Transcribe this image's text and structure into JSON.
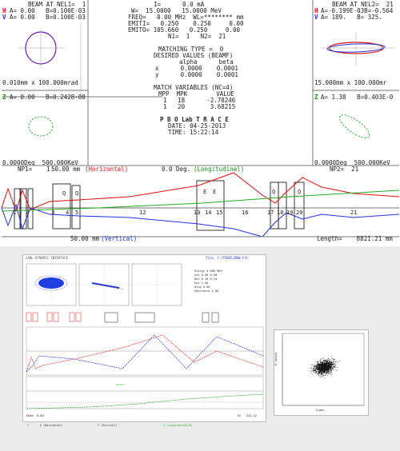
{
  "top_window": {
    "left_beam": {
      "title": "BEAM AT NEL1=  1",
      "h_line": "A= 0.00   B=0.100E-03",
      "v_line": "A= 0.00   B=0.100E-03",
      "scale": "0.010mm x 100.000mrad",
      "long_line": "A= 0.00   B=0.2428-08",
      "long_scale": "0.0000Deg  500.000KeV",
      "h_label": "H",
      "v_label": "V",
      "z_label": "Z"
    },
    "right_beam": {
      "title": "BEAM AT NEL2=  21",
      "h_line": "A=-0.199E-03B=-0.564",
      "v_line": "A= 189.   B= 325.",
      "scale": "15.000mm x 100.000mr",
      "long_line": "A= 1.38   B=0.403E-0",
      "long_scale": "0.0000Deg  500.000KeV",
      "h_label": "H",
      "v_label": "V",
      "z_label": "Z"
    },
    "center": {
      "i_line": "I=      0.0 mA",
      "w_line": "W=  15.0000   15.0000 MeV",
      "freq_line": "FREQ=   0.00 MHz  WL=******** mm",
      "emiti_line": "EMITI=   0.250    0.250     0.00",
      "emito_line": "EMITO= 105.660   0.250     0.00",
      "n_line": "N1=  1   N2=  21",
      "matching_type": "MATCHING TYPE =  0",
      "desired": "DESIRED VALUES (BEAMF)",
      "alpha_beta": "alpha      beta",
      "x_row": "x      0.0000    0.0001",
      "y_row": "y      0.0000    0.0001",
      "match_vars": "MATCH VARIABLES (NC=4)",
      "mpp_header": "MPP  MPK        VALUE",
      "row1": "1   18      -2.78246",
      "row2": "1   20       3.68215",
      "app_name": "P B O Lab T R A C E",
      "date": "DATE: 04-25-2013",
      "time": "TIME: 15:22:14"
    },
    "beamline": {
      "np1": "NP1=    1",
      "horiz_scale": "50.00 mm",
      "horiz_word": "(Horizontal)",
      "phase_scale": "0.0 Deg.",
      "phase_word": "(Longitudinal)",
      "np2": "NP2=  21",
      "vert_scale": "50.00 mm",
      "vert_word": "(Vertical)",
      "length": "Length=    8821.21 mm",
      "element_labels": [
        "1",
        "2",
        "3",
        "4",
        "5",
        "12",
        "13",
        "14",
        "15",
        "16",
        "17",
        "18",
        "19",
        "20",
        "21",
        "Q",
        "Q",
        "Q",
        "Q",
        "E",
        "E"
      ]
    },
    "colors": {
      "horizontal": "#dd1111",
      "vertical": "#2233dd",
      "longitudinal": "#119911"
    }
  },
  "lower_window": {
    "title": "LANL DYNAMIC INTERFACE",
    "header_right": "file: C:/TRACE/NEW.ttt",
    "param_rows": [
      "Energy  0.000  MeV",
      "Alp  0.00  0.00",
      "Bet  0.10  0.10",
      "Eps  1.00",
      "Disp  0.00",
      "Emittance 1.00"
    ],
    "footer_left": "Emax  0.00",
    "footer_right": "Ec   321.12",
    "legend": [
      "Y",
      "X  (Horizontal)",
      "Y  (Vertical)",
      "Z  (Longitudinal/E)"
    ],
    "scatter": {
      "xlabel": "X(mm)",
      "ylabel": "X'(mrad)"
    }
  }
}
